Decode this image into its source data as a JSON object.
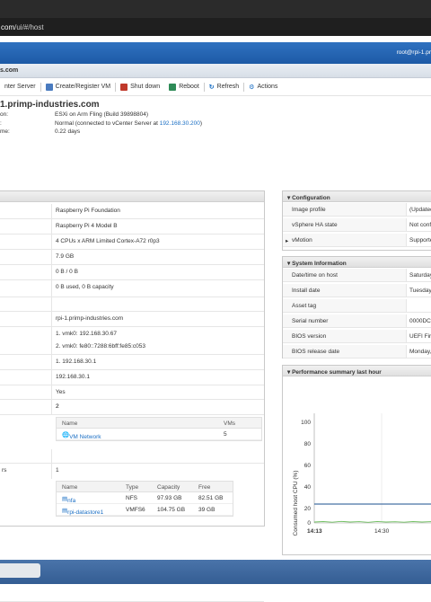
{
  "browser": {
    "url_host": "com",
    "url_path": "/ui/#/host"
  },
  "header": {
    "user": "root@rpi-1.pr"
  },
  "host_strip": {
    "title": "s.com"
  },
  "toolbar": {
    "items": [
      {
        "label": "nter Server"
      },
      {
        "label": "Create/Register VM"
      },
      {
        "label": "Shut down"
      },
      {
        "label": "Reboot"
      },
      {
        "label": "Refresh"
      },
      {
        "label": "Actions"
      }
    ]
  },
  "summary": {
    "hostname": "1.primp-industries.com",
    "rows": [
      {
        "key": "on:",
        "value": "ESXi on Arm Fling (Build 39898804)"
      },
      {
        "key": ":",
        "value": "Normal (connected to vCenter Server at ",
        "link": "192.168.30.200",
        "suffix": ")"
      },
      {
        "key": "me:",
        "value": "0.22 days"
      }
    ]
  },
  "hardware": {
    "rows": [
      "Raspberry Pi Foundation",
      "Raspberry Pi 4 Model B",
      "4 CPUs x ARM Limited Cortex-A72 r0p3",
      "7.9 GB",
      "0 B / 0 B",
      "0 B used, 0 B capacity",
      "",
      "rpi-1.primp-industries.com",
      "1. vmk0: 192.168.30.67",
      "2. vmk0: fe80::7288:6bff:fe85:c053",
      "1. 192.168.30.1",
      "192.168.30.1",
      "Yes",
      "2"
    ],
    "rs_label": "rs",
    "datastore_count": "1",
    "networks": {
      "headers": [
        "Name",
        "VMs"
      ],
      "rows": [
        {
          "name": "VM Network",
          "vms": "5"
        }
      ]
    },
    "datastores": {
      "headers": [
        "Name",
        "Type",
        "Capacity",
        "Free"
      ],
      "rows": [
        {
          "name": "nfa",
          "type": "NFS",
          "capacity": "97.93 GB",
          "free": "82.51 GB"
        },
        {
          "name": "rpi-datastore1",
          "type": "VMFS6",
          "capacity": "104.75 GB",
          "free": "39 GB"
        }
      ]
    }
  },
  "configuration": {
    "title": "Configuration",
    "rows": [
      {
        "key": "Image profile",
        "value": "(Updated"
      },
      {
        "key": "vSphere HA state",
        "value": "Not conf"
      },
      {
        "key": "vMotion",
        "value": "Supporte"
      }
    ]
  },
  "system_info": {
    "title": "System Information",
    "rows": [
      {
        "key": "Date/time on host",
        "value": "Saturday"
      },
      {
        "key": "Install date",
        "value": "Tuesday,"
      },
      {
        "key": "Asset tag",
        "value": ""
      },
      {
        "key": "Serial number",
        "value": "0000DCA"
      },
      {
        "key": "BIOS version",
        "value": "UEFI Fir"
      },
      {
        "key": "BIOS release date",
        "value": "Monday,"
      }
    ]
  },
  "performance": {
    "title": "Performance summary last hour",
    "ylabel": "Consumed host CPU (%)",
    "yticks": [
      "100",
      "80",
      "60",
      "40",
      "20",
      "0"
    ],
    "xticks": [
      "14:13",
      "14:30"
    ]
  },
  "colors": {
    "accent": "#1d5aa6",
    "link": "#1b6fc4",
    "chart_line": "#1a4f8f",
    "chart_noise": "#6fbf5f"
  }
}
